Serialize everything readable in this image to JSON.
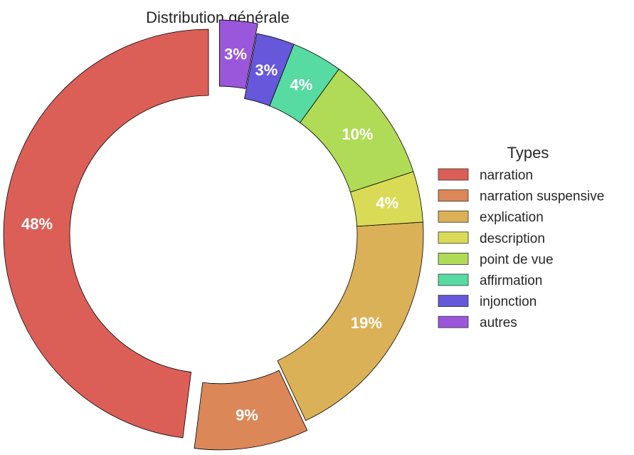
{
  "chart_data": {
    "type": "pie",
    "variant": "donut",
    "title": "Distribution générale",
    "legend_title": "Types",
    "legend_position": "right",
    "slices": [
      {
        "label": "narration",
        "value": 48,
        "text": "48%",
        "color": "#db5f57",
        "exploded": true
      },
      {
        "label": "narration suspensive",
        "value": 9,
        "text": "9%",
        "color": "#db8757",
        "exploded": true
      },
      {
        "label": "explication",
        "value": 19,
        "text": "19%",
        "color": "#dbb157",
        "exploded": false
      },
      {
        "label": "description",
        "value": 4,
        "text": "4%",
        "color": "#d9db57",
        "exploded": false
      },
      {
        "label": "point de vue",
        "value": 10,
        "text": "10%",
        "color": "#b0db57",
        "exploded": false
      },
      {
        "label": "affirmation",
        "value": 4,
        "text": "4%",
        "color": "#57dba2",
        "exploded": false
      },
      {
        "label": "injonction",
        "value": 3,
        "text": "3%",
        "color": "#6657db",
        "exploded": false
      },
      {
        "label": "autres",
        "value": 3,
        "text": "3%",
        "color": "#9a57db",
        "exploded": true
      }
    ]
  }
}
